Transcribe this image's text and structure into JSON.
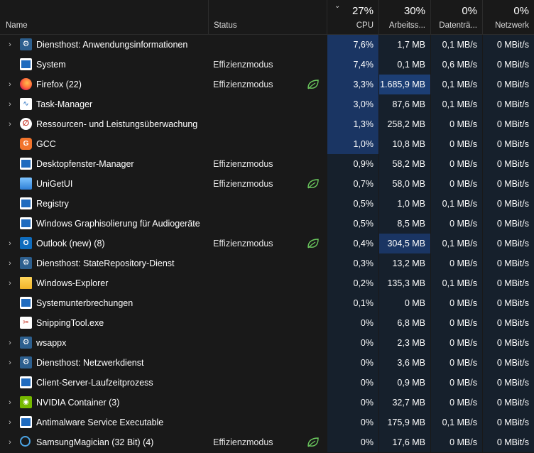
{
  "header": {
    "name_label": "Name",
    "status_label": "Status",
    "cpu": {
      "pct": "27%",
      "label": "CPU"
    },
    "memory": {
      "pct": "30%",
      "label": "Arbeitss..."
    },
    "disk": {
      "pct": "0%",
      "label": "Datenträ..."
    },
    "network": {
      "pct": "0%",
      "label": "Netzwerk"
    }
  },
  "leaf_icon_color": "#6ccb5f",
  "processes": [
    {
      "name": "Diensthost: Anwendungsinformationen",
      "expandable": true,
      "icon": "gear-icon",
      "status": "",
      "eco": false,
      "cpu": "7,6%",
      "memory": "1,7 MB",
      "disk": "0,1 MB/s",
      "network": "0 MBit/s"
    },
    {
      "name": "System",
      "expandable": false,
      "icon": "window-icon",
      "status": "Effizienzmodus",
      "eco": false,
      "cpu": "7,4%",
      "memory": "0,1 MB",
      "disk": "0,6 MB/s",
      "network": "0 MBit/s"
    },
    {
      "name": "Firefox (22)",
      "expandable": true,
      "icon": "firefox-icon",
      "status": "Effizienzmodus",
      "eco": true,
      "cpu": "3,3%",
      "memory": "1.685,9 MB",
      "disk": "0,1 MB/s",
      "network": "0 MBit/s"
    },
    {
      "name": "Task-Manager",
      "expandable": true,
      "icon": "task-manager-icon",
      "status": "",
      "eco": false,
      "cpu": "3,0%",
      "memory": "87,6 MB",
      "disk": "0,1 MB/s",
      "network": "0 MBit/s"
    },
    {
      "name": "Ressourcen- und Leistungsüberwachung",
      "expandable": true,
      "icon": "resource-monitor-icon",
      "status": "",
      "eco": false,
      "cpu": "1,3%",
      "memory": "258,2 MB",
      "disk": "0 MB/s",
      "network": "0 MBit/s"
    },
    {
      "name": "GCC",
      "expandable": false,
      "icon": "gcc-icon",
      "status": "",
      "eco": false,
      "cpu": "1,0%",
      "memory": "10,8 MB",
      "disk": "0 MB/s",
      "network": "0 MBit/s"
    },
    {
      "name": "Desktopfenster-Manager",
      "expandable": false,
      "icon": "window-icon",
      "status": "Effizienzmodus",
      "eco": false,
      "cpu": "0,9%",
      "memory": "58,2 MB",
      "disk": "0 MB/s",
      "network": "0 MBit/s"
    },
    {
      "name": "UniGetUI",
      "expandable": false,
      "icon": "unigetui-icon",
      "status": "Effizienzmodus",
      "eco": true,
      "cpu": "0,7%",
      "memory": "58,0 MB",
      "disk": "0 MB/s",
      "network": "0 MBit/s"
    },
    {
      "name": "Registry",
      "expandable": false,
      "icon": "window-icon",
      "status": "",
      "eco": false,
      "cpu": "0,5%",
      "memory": "1,0 MB",
      "disk": "0,1 MB/s",
      "network": "0 MBit/s"
    },
    {
      "name": "Windows Graphisolierung für Audiogeräte",
      "expandable": false,
      "icon": "window-icon",
      "status": "",
      "eco": false,
      "cpu": "0,5%",
      "memory": "8,5 MB",
      "disk": "0 MB/s",
      "network": "0 MBit/s"
    },
    {
      "name": "Outlook (new) (8)",
      "expandable": true,
      "icon": "outlook-icon",
      "status": "Effizienzmodus",
      "eco": true,
      "cpu": "0,4%",
      "memory": "304,5 MB",
      "disk": "0,1 MB/s",
      "network": "0 MBit/s"
    },
    {
      "name": "Diensthost: StateRepository-Dienst",
      "expandable": true,
      "icon": "gear-icon",
      "status": "",
      "eco": false,
      "cpu": "0,3%",
      "memory": "13,2 MB",
      "disk": "0 MB/s",
      "network": "0 MBit/s"
    },
    {
      "name": "Windows-Explorer",
      "expandable": true,
      "icon": "folder-icon",
      "status": "",
      "eco": false,
      "cpu": "0,2%",
      "memory": "135,3 MB",
      "disk": "0,1 MB/s",
      "network": "0 MBit/s"
    },
    {
      "name": "Systemunterbrechungen",
      "expandable": false,
      "icon": "window-icon",
      "status": "",
      "eco": false,
      "cpu": "0,1%",
      "memory": "0 MB",
      "disk": "0 MB/s",
      "network": "0 MBit/s"
    },
    {
      "name": "SnippingTool.exe",
      "expandable": false,
      "icon": "snipping-tool-icon",
      "status": "",
      "eco": false,
      "cpu": "0%",
      "memory": "6,8 MB",
      "disk": "0 MB/s",
      "network": "0 MBit/s"
    },
    {
      "name": "wsappx",
      "expandable": true,
      "icon": "gear-icon",
      "status": "",
      "eco": false,
      "cpu": "0%",
      "memory": "2,3 MB",
      "disk": "0 MB/s",
      "network": "0 MBit/s"
    },
    {
      "name": "Diensthost: Netzwerkdienst",
      "expandable": true,
      "icon": "gear-icon",
      "status": "",
      "eco": false,
      "cpu": "0%",
      "memory": "3,6 MB",
      "disk": "0 MB/s",
      "network": "0 MBit/s"
    },
    {
      "name": "Client-Server-Laufzeitprozess",
      "expandable": false,
      "icon": "window-icon",
      "status": "",
      "eco": false,
      "cpu": "0%",
      "memory": "0,9 MB",
      "disk": "0 MB/s",
      "network": "0 MBit/s"
    },
    {
      "name": "NVIDIA Container (3)",
      "expandable": true,
      "icon": "nvidia-icon",
      "status": "",
      "eco": false,
      "cpu": "0%",
      "memory": "32,7 MB",
      "disk": "0 MB/s",
      "network": "0 MBit/s"
    },
    {
      "name": "Antimalware Service Executable",
      "expandable": true,
      "icon": "window-icon",
      "status": "",
      "eco": false,
      "cpu": "0%",
      "memory": "175,9 MB",
      "disk": "0,1 MB/s",
      "network": "0 MBit/s"
    },
    {
      "name": "SamsungMagician (32 Bit) (4)",
      "expandable": true,
      "icon": "samsung-magician-icon",
      "status": "Effizienzmodus",
      "eco": true,
      "cpu": "0%",
      "memory": "17,6 MB",
      "disk": "0 MB/s",
      "network": "0 MBit/s"
    }
  ]
}
